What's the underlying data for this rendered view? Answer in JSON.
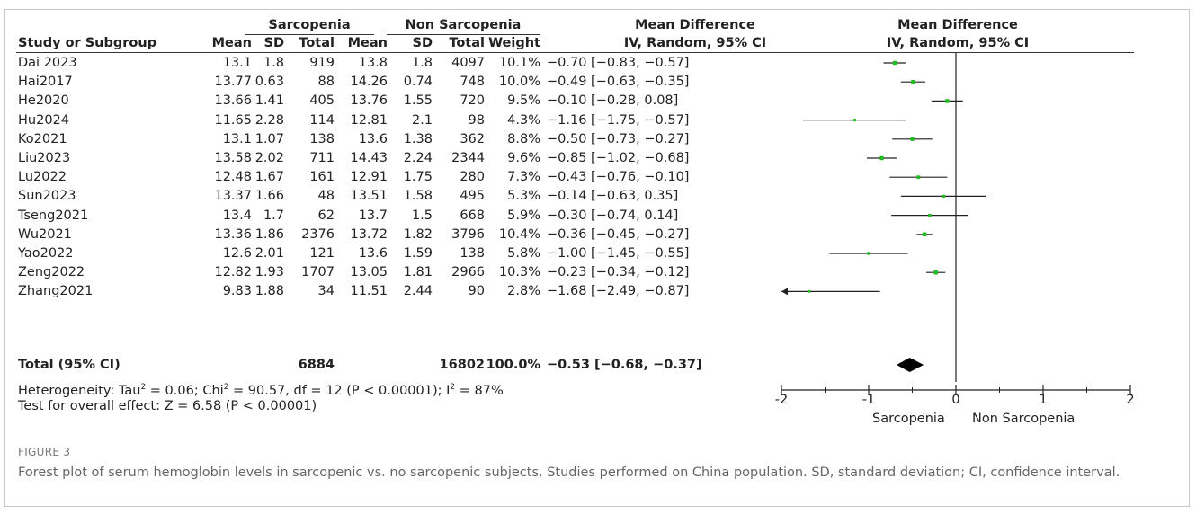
{
  "table": {
    "group1_label": "Sarcopenia",
    "group2_label": "Non Sarcopenia",
    "md_header_1": "Mean Difference",
    "md_header_2": "IV, Random, 95% CI",
    "plot_header_1": "Mean Difference",
    "plot_header_2": "IV, Random, 95% CI",
    "col_study": "Study or Subgroup",
    "col_mean": "Mean",
    "col_sd": "SD",
    "col_total": "Total",
    "col_weight": "Weight",
    "studies": [
      {
        "name": "Dai 2023",
        "m1": "13.1",
        "sd1": "1.8",
        "n1": "919",
        "m2": "13.8",
        "sd2": "1.8",
        "n2": "4097",
        "weight": "10.1%",
        "ci": "−0.70 [−0.83, −0.57]"
      },
      {
        "name": "Hai2017",
        "m1": "13.77",
        "sd1": "0.63",
        "n1": "88",
        "m2": "14.26",
        "sd2": "0.74",
        "n2": "748",
        "weight": "10.0%",
        "ci": "−0.49 [−0.63, −0.35]"
      },
      {
        "name": "He2020",
        "m1": "13.66",
        "sd1": "1.41",
        "n1": "405",
        "m2": "13.76",
        "sd2": "1.55",
        "n2": "720",
        "weight": "9.5%",
        "ci": "−0.10 [−0.28, 0.08]"
      },
      {
        "name": "Hu2024",
        "m1": "11.65",
        "sd1": "2.28",
        "n1": "114",
        "m2": "12.81",
        "sd2": "2.1",
        "n2": "98",
        "weight": "4.3%",
        "ci": "−1.16 [−1.75, −0.57]"
      },
      {
        "name": "Ko2021",
        "m1": "13.1",
        "sd1": "1.07",
        "n1": "138",
        "m2": "13.6",
        "sd2": "1.38",
        "n2": "362",
        "weight": "8.8%",
        "ci": "−0.50 [−0.73, −0.27]"
      },
      {
        "name": "Liu2023",
        "m1": "13.58",
        "sd1": "2.02",
        "n1": "711",
        "m2": "14.43",
        "sd2": "2.24",
        "n2": "2344",
        "weight": "9.6%",
        "ci": "−0.85 [−1.02, −0.68]"
      },
      {
        "name": "Lu2022",
        "m1": "12.48",
        "sd1": "1.67",
        "n1": "161",
        "m2": "12.91",
        "sd2": "1.75",
        "n2": "280",
        "weight": "7.3%",
        "ci": "−0.43 [−0.76, −0.10]"
      },
      {
        "name": "Sun2023",
        "m1": "13.37",
        "sd1": "1.66",
        "n1": "48",
        "m2": "13.51",
        "sd2": "1.58",
        "n2": "495",
        "weight": "5.3%",
        "ci": "−0.14 [−0.63, 0.35]"
      },
      {
        "name": "Tseng2021",
        "m1": "13.4",
        "sd1": "1.7",
        "n1": "62",
        "m2": "13.7",
        "sd2": "1.5",
        "n2": "668",
        "weight": "5.9%",
        "ci": "−0.30 [−0.74, 0.14]"
      },
      {
        "name": "Wu2021",
        "m1": "13.36",
        "sd1": "1.86",
        "n1": "2376",
        "m2": "13.72",
        "sd2": "1.82",
        "n2": "3796",
        "weight": "10.4%",
        "ci": "−0.36 [−0.45, −0.27]"
      },
      {
        "name": "Yao2022",
        "m1": "12.6",
        "sd1": "2.01",
        "n1": "121",
        "m2": "13.6",
        "sd2": "1.59",
        "n2": "138",
        "weight": "5.8%",
        "ci": "−1.00 [−1.45, −0.55]"
      },
      {
        "name": "Zeng2022",
        "m1": "12.82",
        "sd1": "1.93",
        "n1": "1707",
        "m2": "13.05",
        "sd2": "1.81",
        "n2": "2966",
        "weight": "10.3%",
        "ci": "−0.23 [−0.34, −0.12]"
      },
      {
        "name": "Zhang2021",
        "m1": "9.83",
        "sd1": "1.88",
        "n1": "34",
        "m2": "11.51",
        "sd2": "2.44",
        "n2": "90",
        "weight": "2.8%",
        "ci": "−1.68 [−2.49, −0.87]"
      }
    ],
    "total": {
      "name": "Total (95% CI)",
      "n1": "6884",
      "n2": "16802",
      "weight": "100.0%",
      "ci": "−0.53 [−0.68, −0.37]"
    },
    "heterogeneity": {
      "pre": "Heterogeneity: Tau",
      "sup1": "2",
      "mid1": " = 0.06; Chi",
      "sup2": "2",
      "mid2": " = 90.57, df = 12 (P < 0.00001); I",
      "sup3": "2",
      "post": " = 87%"
    },
    "overall_effect": "Test for overall effect: Z = 6.58 (P < 0.00001)"
  },
  "caption": {
    "label": "FIGURE 3",
    "text": "Forest plot of serum hemoglobin levels in sarcopenic vs. no sarcopenic subjects. Studies performed on China population. SD, standard deviation; CI, confidence interval."
  },
  "chart_data": {
    "type": "forest",
    "xlim": [
      -2,
      2
    ],
    "xticks": [
      "-2",
      "-1",
      "0",
      "1",
      "2"
    ],
    "favours_left": "Sarcopenia",
    "favours_right": "Non Sarcopenia",
    "studies": [
      {
        "name": "Dai 2023",
        "md": -0.7,
        "lo": -0.83,
        "hi": -0.57,
        "weight": 10.1
      },
      {
        "name": "Hai2017",
        "md": -0.49,
        "lo": -0.63,
        "hi": -0.35,
        "weight": 10.0
      },
      {
        "name": "He2020",
        "md": -0.1,
        "lo": -0.28,
        "hi": 0.08,
        "weight": 9.5
      },
      {
        "name": "Hu2024",
        "md": -1.16,
        "lo": -1.75,
        "hi": -0.57,
        "weight": 4.3
      },
      {
        "name": "Ko2021",
        "md": -0.5,
        "lo": -0.73,
        "hi": -0.27,
        "weight": 8.8
      },
      {
        "name": "Liu2023",
        "md": -0.85,
        "lo": -1.02,
        "hi": -0.68,
        "weight": 9.6
      },
      {
        "name": "Lu2022",
        "md": -0.43,
        "lo": -0.76,
        "hi": -0.1,
        "weight": 7.3
      },
      {
        "name": "Sun2023",
        "md": -0.14,
        "lo": -0.63,
        "hi": 0.35,
        "weight": 5.3
      },
      {
        "name": "Tseng2021",
        "md": -0.3,
        "lo": -0.74,
        "hi": 0.14,
        "weight": 5.9
      },
      {
        "name": "Wu2021",
        "md": -0.36,
        "lo": -0.45,
        "hi": -0.27,
        "weight": 10.4
      },
      {
        "name": "Yao2022",
        "md": -1.0,
        "lo": -1.45,
        "hi": -0.55,
        "weight": 5.8
      },
      {
        "name": "Zeng2022",
        "md": -0.23,
        "lo": -0.34,
        "hi": -0.12,
        "weight": 10.3
      },
      {
        "name": "Zhang2021",
        "md": -1.68,
        "lo": -2.49,
        "hi": -0.87,
        "weight": 2.8
      }
    ],
    "pooled": {
      "md": -0.53,
      "lo": -0.68,
      "hi": -0.37
    },
    "colors": {
      "marker": "#22bb22",
      "line": "#222222",
      "diamond": "#000000"
    }
  }
}
